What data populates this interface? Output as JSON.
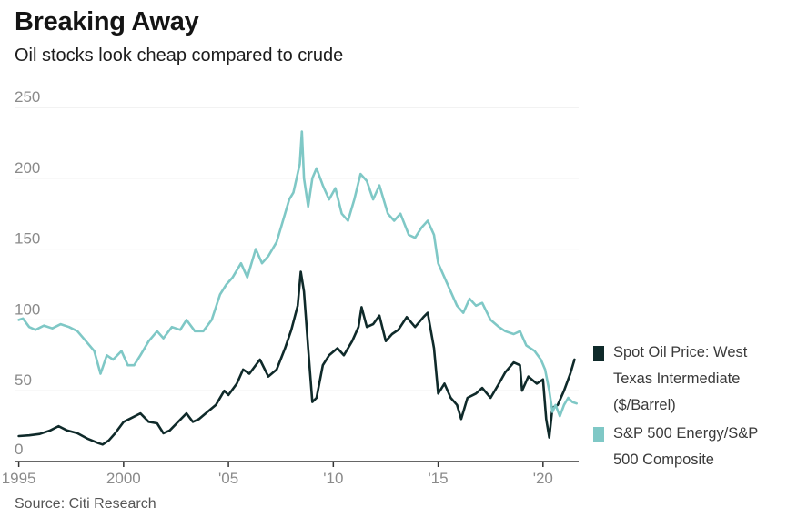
{
  "header": {
    "title": "Breaking Away",
    "subtitle": "Oil stocks look cheap compared to crude"
  },
  "footer": {
    "source": "Source: Citi Research"
  },
  "colors": {
    "wti": "#0f2a2a",
    "energy_ratio": "#7fc8c6",
    "grid": "#e4e4e4",
    "axis": "#333333",
    "tick_text": "#8a8a8a"
  },
  "chart_data": {
    "type": "line",
    "x_ticks": [
      {
        "value": 1995,
        "label": "1995"
      },
      {
        "value": 2000,
        "label": "2000"
      },
      {
        "value": 2005,
        "label": "'05"
      },
      {
        "value": 2010,
        "label": "'10"
      },
      {
        "value": 2015,
        "label": "'15"
      },
      {
        "value": 2020,
        "label": "'20"
      }
    ],
    "y_ticks": [
      0,
      50,
      100,
      150,
      200,
      250
    ],
    "xlim": [
      1994.8,
      2021.7
    ],
    "ylim": [
      0,
      250
    ],
    "grid": "horizontal",
    "legend_position": "right",
    "series": [
      {
        "name": "Spot Oil Price: West Texas Intermediate ($/Barrel)",
        "color": "#0f2a2a",
        "points": [
          [
            1995.0,
            18
          ],
          [
            1995.5,
            18.5
          ],
          [
            1996.0,
            19.5
          ],
          [
            1996.5,
            22
          ],
          [
            1996.9,
            25
          ],
          [
            1997.3,
            22
          ],
          [
            1997.8,
            20
          ],
          [
            1998.3,
            16
          ],
          [
            1998.8,
            13
          ],
          [
            1999.0,
            12
          ],
          [
            1999.3,
            15
          ],
          [
            1999.6,
            20
          ],
          [
            2000.0,
            28
          ],
          [
            2000.4,
            31
          ],
          [
            2000.8,
            34
          ],
          [
            2001.2,
            28
          ],
          [
            2001.6,
            27
          ],
          [
            2001.9,
            20
          ],
          [
            2002.2,
            22
          ],
          [
            2002.6,
            28
          ],
          [
            2003.0,
            34
          ],
          [
            2003.3,
            28
          ],
          [
            2003.6,
            30
          ],
          [
            2004.0,
            35
          ],
          [
            2004.4,
            40
          ],
          [
            2004.8,
            50
          ],
          [
            2005.0,
            47
          ],
          [
            2005.4,
            55
          ],
          [
            2005.7,
            65
          ],
          [
            2006.0,
            62
          ],
          [
            2006.5,
            72
          ],
          [
            2006.9,
            60
          ],
          [
            2007.3,
            65
          ],
          [
            2007.7,
            80
          ],
          [
            2008.0,
            93
          ],
          [
            2008.3,
            110
          ],
          [
            2008.45,
            134
          ],
          [
            2008.6,
            120
          ],
          [
            2008.8,
            80
          ],
          [
            2009.0,
            42
          ],
          [
            2009.2,
            45
          ],
          [
            2009.5,
            68
          ],
          [
            2009.8,
            75
          ],
          [
            2010.2,
            80
          ],
          [
            2010.5,
            75
          ],
          [
            2010.9,
            85
          ],
          [
            2011.2,
            95
          ],
          [
            2011.35,
            109
          ],
          [
            2011.6,
            95
          ],
          [
            2011.9,
            97
          ],
          [
            2012.2,
            103
          ],
          [
            2012.5,
            85
          ],
          [
            2012.8,
            90
          ],
          [
            2013.1,
            93
          ],
          [
            2013.5,
            102
          ],
          [
            2013.9,
            95
          ],
          [
            2014.3,
            102
          ],
          [
            2014.5,
            105
          ],
          [
            2014.8,
            80
          ],
          [
            2015.0,
            48
          ],
          [
            2015.3,
            55
          ],
          [
            2015.6,
            45
          ],
          [
            2015.9,
            40
          ],
          [
            2016.1,
            30
          ],
          [
            2016.4,
            45
          ],
          [
            2016.8,
            48
          ],
          [
            2017.1,
            52
          ],
          [
            2017.5,
            45
          ],
          [
            2017.9,
            55
          ],
          [
            2018.2,
            63
          ],
          [
            2018.6,
            70
          ],
          [
            2018.9,
            68
          ],
          [
            2019.0,
            50
          ],
          [
            2019.3,
            60
          ],
          [
            2019.7,
            55
          ],
          [
            2020.0,
            58
          ],
          [
            2020.15,
            30
          ],
          [
            2020.3,
            17
          ],
          [
            2020.45,
            38
          ],
          [
            2020.7,
            40
          ],
          [
            2021.0,
            50
          ],
          [
            2021.3,
            62
          ],
          [
            2021.5,
            72
          ]
        ]
      },
      {
        "name": "S&P 500 Energy/S&P 500 Composite",
        "color": "#7fc8c6",
        "points": [
          [
            1995.0,
            100
          ],
          [
            1995.2,
            101
          ],
          [
            1995.5,
            95
          ],
          [
            1995.8,
            93
          ],
          [
            1996.2,
            96
          ],
          [
            1996.6,
            94
          ],
          [
            1997.0,
            97
          ],
          [
            1997.4,
            95
          ],
          [
            1997.8,
            92
          ],
          [
            1998.2,
            85
          ],
          [
            1998.6,
            78
          ],
          [
            1998.9,
            62
          ],
          [
            1999.2,
            75
          ],
          [
            1999.5,
            72
          ],
          [
            1999.9,
            78
          ],
          [
            2000.2,
            68
          ],
          [
            2000.5,
            68
          ],
          [
            2000.8,
            75
          ],
          [
            2001.2,
            85
          ],
          [
            2001.6,
            92
          ],
          [
            2001.9,
            87
          ],
          [
            2002.3,
            95
          ],
          [
            2002.7,
            93
          ],
          [
            2003.0,
            100
          ],
          [
            2003.4,
            92
          ],
          [
            2003.8,
            92
          ],
          [
            2004.2,
            100
          ],
          [
            2004.6,
            118
          ],
          [
            2004.9,
            125
          ],
          [
            2005.2,
            130
          ],
          [
            2005.6,
            140
          ],
          [
            2005.9,
            130
          ],
          [
            2006.3,
            150
          ],
          [
            2006.6,
            140
          ],
          [
            2006.9,
            145
          ],
          [
            2007.3,
            155
          ],
          [
            2007.6,
            170
          ],
          [
            2007.9,
            185
          ],
          [
            2008.1,
            190
          ],
          [
            2008.25,
            200
          ],
          [
            2008.4,
            210
          ],
          [
            2008.5,
            233
          ],
          [
            2008.6,
            200
          ],
          [
            2008.8,
            180
          ],
          [
            2009.0,
            200
          ],
          [
            2009.2,
            207
          ],
          [
            2009.5,
            195
          ],
          [
            2009.8,
            185
          ],
          [
            2010.1,
            193
          ],
          [
            2010.4,
            175
          ],
          [
            2010.7,
            170
          ],
          [
            2011.0,
            185
          ],
          [
            2011.3,
            203
          ],
          [
            2011.6,
            198
          ],
          [
            2011.9,
            185
          ],
          [
            2012.2,
            195
          ],
          [
            2012.6,
            175
          ],
          [
            2012.9,
            170
          ],
          [
            2013.2,
            175
          ],
          [
            2013.6,
            160
          ],
          [
            2013.9,
            158
          ],
          [
            2014.2,
            165
          ],
          [
            2014.5,
            170
          ],
          [
            2014.8,
            160
          ],
          [
            2015.0,
            140
          ],
          [
            2015.3,
            130
          ],
          [
            2015.6,
            120
          ],
          [
            2015.9,
            110
          ],
          [
            2016.2,
            105
          ],
          [
            2016.5,
            115
          ],
          [
            2016.8,
            110
          ],
          [
            2017.1,
            112
          ],
          [
            2017.5,
            100
          ],
          [
            2017.9,
            95
          ],
          [
            2018.2,
            92
          ],
          [
            2018.6,
            90
          ],
          [
            2018.9,
            92
          ],
          [
            2019.2,
            82
          ],
          [
            2019.6,
            78
          ],
          [
            2019.9,
            72
          ],
          [
            2020.1,
            65
          ],
          [
            2020.3,
            50
          ],
          [
            2020.45,
            35
          ],
          [
            2020.6,
            40
          ],
          [
            2020.8,
            32
          ],
          [
            2021.0,
            40
          ],
          [
            2021.2,
            45
          ],
          [
            2021.4,
            42
          ],
          [
            2021.6,
            41
          ]
        ]
      }
    ]
  }
}
